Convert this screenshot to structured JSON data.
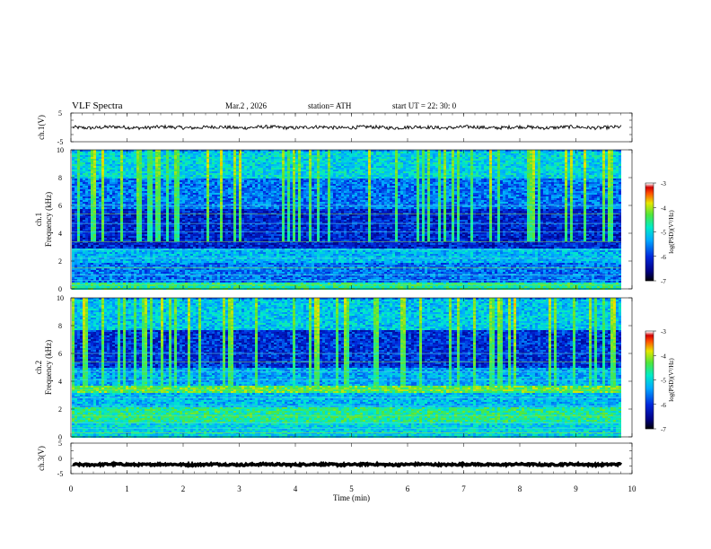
{
  "header": {
    "title": "VLF  Spectra",
    "date": "Mar.2  , 2026",
    "station": "station= ATH",
    "start_ut": "start  UT  =   22: 30: 0"
  },
  "chart_data": [
    {
      "type": "line",
      "panel": "ch1-waveform",
      "ylabel": "ch.1(V)",
      "ylim": [
        -5,
        5
      ],
      "yticks": [
        "5",
        "-5"
      ],
      "xlim": [
        0,
        10
      ],
      "series": [
        {
          "values_note": "noisy trace near 0 V",
          "mean": 0.0,
          "spread": 0.6
        }
      ],
      "color": "#000000"
    },
    {
      "type": "heatmap",
      "panel": "ch1-spectrogram",
      "ylabel_top": "ch.1",
      "ylabel": "Frequency  (kHz)",
      "ylim": [
        0,
        10
      ],
      "yticks": [
        "0",
        "2",
        "4",
        "6",
        "8",
        "10"
      ],
      "xlim": [
        0,
        9.8
      ],
      "colorbar": {
        "label": "log(PSD)(V²/Hz)",
        "ticks": [
          "-3",
          "-4",
          "-5",
          "-6",
          "-7"
        ],
        "range": [
          -7,
          -3
        ]
      },
      "bands": [
        {
          "f": [
            0,
            0.5
          ],
          "level": -4.6
        },
        {
          "f": [
            0.5,
            2.0
          ],
          "level": -5.6
        },
        {
          "f": [
            2.0,
            3.0
          ],
          "level": -5.2
        },
        {
          "f": [
            3.0,
            5.8
          ],
          "level": -6.1
        },
        {
          "f": [
            5.8,
            8.0
          ],
          "level": -5.6
        },
        {
          "f": [
            8.0,
            10.0
          ],
          "level": -5.0
        }
      ]
    },
    {
      "type": "heatmap",
      "panel": "ch2-spectrogram",
      "ylabel_top": "ch.2",
      "ylabel": "Frequency  (kHz)",
      "ylim": [
        0,
        10
      ],
      "yticks": [
        "0",
        "2",
        "4",
        "6",
        "8",
        "10"
      ],
      "xlim": [
        0,
        9.8
      ],
      "colorbar": {
        "label": "log(PSD)(V²/Hz)",
        "ticks": [
          "-3",
          "-4",
          "-5",
          "-6",
          "-7"
        ],
        "range": [
          -7,
          -3
        ]
      },
      "bands": [
        {
          "f": [
            0,
            1.0
          ],
          "level": -5.0
        },
        {
          "f": [
            1.0,
            2.2
          ],
          "level": -4.6
        },
        {
          "f": [
            2.2,
            3.2
          ],
          "level": -5.2
        },
        {
          "f": [
            3.2,
            3.8
          ],
          "level": -4.3
        },
        {
          "f": [
            3.8,
            5.0
          ],
          "level": -5.3
        },
        {
          "f": [
            5.0,
            7.8
          ],
          "level": -6.0
        },
        {
          "f": [
            7.8,
            10.0
          ],
          "level": -5.1
        }
      ]
    },
    {
      "type": "line",
      "panel": "ch3-waveform",
      "ylabel": "ch.3(V)",
      "ylim": [
        -5,
        5
      ],
      "yticks": [
        "5",
        "0",
        "-5"
      ],
      "xlim": [
        0,
        10
      ],
      "series": [
        {
          "values_note": "flat thick line",
          "mean": -2.0,
          "spread": 0.3
        }
      ],
      "color": "#000000"
    }
  ],
  "xaxis": {
    "label": "Time  (min)",
    "ticks": [
      "0",
      "1",
      "2",
      "3",
      "4",
      "5",
      "6",
      "7",
      "8",
      "9",
      "10"
    ],
    "range": [
      0,
      10
    ]
  }
}
